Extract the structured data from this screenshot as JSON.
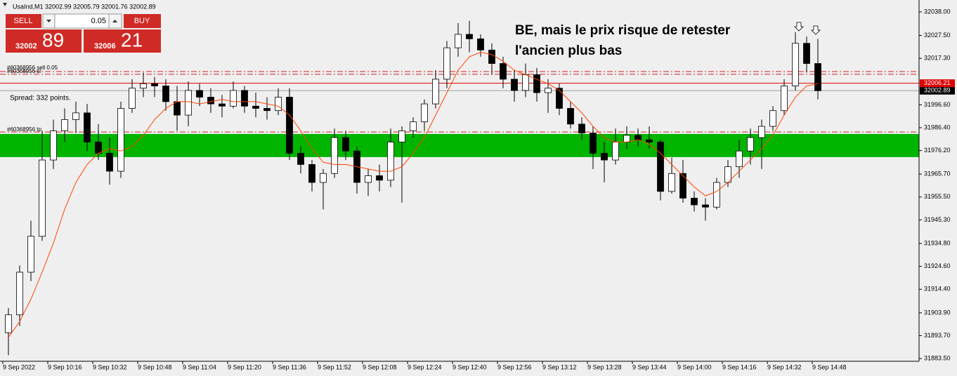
{
  "header": "UsaInd,M1 32002.99 32005.79 32001.76 32002.89",
  "trade_panel": {
    "sell": "SELL",
    "buy": "BUY",
    "volume": "0.05",
    "sell_price_main": "32002",
    "sell_price_big": "89",
    "buy_price_main": "32006",
    "buy_price_big": "21"
  },
  "spread": "Spread: 332 points.",
  "annotation": [
    "BE, mais le prix risque de retester",
    "l'ancien plus bas"
  ],
  "chart_data": {
    "type": "candlestick",
    "categories": [
      "9 Sep 2022",
      null,
      null,
      null,
      "9 Sep 10:16",
      null,
      null,
      null,
      "9 Sep 10:32",
      null,
      null,
      null,
      "9 Sep 10:48",
      null,
      null,
      null,
      "9 Sep 11:04",
      null,
      null,
      null,
      "9 Sep 11:20",
      null,
      null,
      null,
      "9 Sep 11:36",
      null,
      null,
      null,
      "9 Sep 11:52",
      null,
      null,
      null,
      "9 Sep 12:08",
      null,
      null,
      null,
      "9 Sep 12:24",
      null,
      null,
      null,
      "9 Sep 12:40",
      null,
      null,
      null,
      "9 Sep 12:56",
      null,
      null,
      null,
      "9 Sep 13:12",
      null,
      null,
      null,
      "9 Sep 13:28",
      null,
      null,
      null,
      "9 Sep 13:44",
      null,
      null,
      null,
      "9 Sep 14:00",
      null,
      null,
      null,
      "9 Sep 14:16",
      null,
      null,
      null,
      "9 Sep 14:32",
      null,
      null,
      null,
      "9 Sep 14:48"
    ],
    "open": [
      31895,
      31903,
      31922,
      31938,
      31972,
      31985,
      31990,
      31993,
      31980,
      31975,
      31967,
      31995,
      32004,
      32006,
      32005,
      31998,
      31992,
      32003,
      32000,
      31997,
      31996,
      32003,
      31996,
      31995,
      31994,
      32000,
      31975,
      31970,
      31962,
      31966,
      31982,
      31976,
      31962,
      31965,
      31963,
      31980,
      31985,
      31989,
      31997,
      32008,
      32022,
      32028,
      32026,
      32021,
      32015,
      32008,
      32003,
      32010,
      32002,
      32004,
      31995,
      31988,
      31984,
      31975,
      31972,
      31980,
      31983,
      31981,
      31980,
      31958,
      31966,
      31955,
      31952,
      31951,
      31962,
      31969,
      31976,
      31982,
      31987,
      31994,
      32005,
      32024,
      32015
    ],
    "high": [
      31906,
      31925,
      31945,
      31985,
      31990,
      31995,
      31998,
      31997,
      31988,
      31982,
      31998,
      32008,
      32011,
      32009,
      32008,
      32005,
      32007,
      32006,
      32004,
      32001,
      32007,
      32005,
      32002,
      32000,
      32004,
      32004,
      31978,
      31972,
      31968,
      31986,
      31985,
      31978,
      31968,
      31970,
      31986,
      31987,
      31991,
      31999,
      32012,
      32025,
      32033,
      32034,
      32028,
      32024,
      32018,
      32012,
      32015,
      32013,
      32008,
      32006,
      31998,
      31991,
      31987,
      31980,
      31986,
      31987,
      31986,
      31987,
      31981,
      31973,
      31972,
      31958,
      31955,
      31964,
      31972,
      31981,
      31986,
      31990,
      31996,
      32008,
      32029,
      32027,
      32026
    ],
    "low": [
      31885,
      31898,
      31918,
      31936,
      31968,
      31980,
      31984,
      31976,
      31972,
      31961,
      31964,
      31993,
      32000,
      32000,
      31994,
      31985,
      31987,
      31996,
      31993,
      31991,
      31995,
      31993,
      31991,
      31990,
      31992,
      31972,
      31966,
      31958,
      31950,
      31964,
      31972,
      31957,
      31956,
      31958,
      31960,
      31953,
      31982,
      31985,
      31995,
      32004,
      32018,
      32020,
      32018,
      32010,
      32004,
      31998,
      32000,
      31998,
      31993,
      31992,
      31986,
      31981,
      31968,
      31962,
      31970,
      31977,
      31978,
      31977,
      31954,
      31957,
      31953,
      31949,
      31945,
      31950,
      31960,
      31964,
      31970,
      31968,
      31985,
      31992,
      32003,
      32011,
      31999
    ],
    "close": [
      31903,
      31922,
      31938,
      31972,
      31985,
      31990,
      31993,
      31980,
      31975,
      31967,
      31995,
      32004,
      32006,
      32005,
      31998,
      31992,
      32003,
      32000,
      31997,
      31996,
      32003,
      31996,
      31995,
      31994,
      32000,
      31975,
      31970,
      31962,
      31966,
      31982,
      31976,
      31962,
      31965,
      31963,
      31980,
      31985,
      31989,
      31997,
      32008,
      32022,
      32028,
      32026,
      32021,
      32015,
      32008,
      32003,
      32010,
      32002,
      32004,
      31995,
      31988,
      31984,
      31975,
      31972,
      31980,
      31983,
      31981,
      31980,
      31958,
      31966,
      31955,
      31952,
      31951,
      31962,
      31969,
      31976,
      31982,
      31987,
      31994,
      32005,
      32024,
      32015,
      32002.89
    ],
    "up_color": "#ffffff",
    "down_color": "#000000",
    "ma": {
      "color": "#ff4500",
      "values": [
        31893,
        31900,
        31910,
        31922,
        31935,
        31950,
        31962,
        31970,
        31975,
        31977,
        31976,
        31978,
        31983,
        31990,
        31995,
        31998,
        31998,
        31997,
        31998,
        31999,
        31998,
        31998,
        31998,
        31997,
        31996,
        31992,
        31985,
        31977,
        31971,
        31970,
        31970,
        31969,
        31968,
        31967,
        31967,
        31969,
        31975,
        31982,
        31992,
        32002,
        32012,
        32018,
        32020,
        32019,
        32016,
        32012,
        32010,
        32008,
        32006,
        32003,
        31998,
        31993,
        31987,
        31982,
        31980,
        31980,
        31981,
        31979,
        31975,
        31970,
        31965,
        31960,
        31956,
        31958,
        31962,
        31967,
        31972,
        31977,
        31983,
        31992,
        32000,
        32005,
        32006
      ]
    },
    "ylim": [
      31882.3,
      32043.3
    ],
    "yticks": [
      {
        "value": 32038,
        "label": "32038.00"
      },
      {
        "value": 32027.5,
        "label": "32027.50"
      },
      {
        "value": 32017.3,
        "label": "32017.30"
      },
      {
        "value": 31996.6,
        "label": "31996.60"
      },
      {
        "value": 31986.4,
        "label": "31986.40"
      },
      {
        "value": 31976.2,
        "label": "31976.20"
      },
      {
        "value": 31965.7,
        "label": "31965.70"
      },
      {
        "value": 31955.5,
        "label": "31955.50"
      },
      {
        "value": 31945.3,
        "label": "31945.30"
      },
      {
        "value": 31934.8,
        "label": "31934.80"
      },
      {
        "value": 31924.6,
        "label": "31924.60"
      },
      {
        "value": 31914.4,
        "label": "31914.40"
      },
      {
        "value": 31903.9,
        "label": "31903.90"
      },
      {
        "value": 31893.7,
        "label": "31893.70"
      },
      {
        "value": 31883.5,
        "label": "31883.50"
      }
    ],
    "ask": {
      "value": 32006.21,
      "label": "32006.21",
      "color": "#e00000"
    },
    "bid": {
      "value": 32002.89,
      "label": "32002.89",
      "color": "#a0a0a0"
    },
    "orders": [
      {
        "label": "#60368956 sell 0.05",
        "value": 32011.4
      },
      {
        "label": "#60368956 sl",
        "value": 32010.2
      },
      {
        "label": "#60368956 tp",
        "value": 31984.5
      }
    ],
    "order_color": "#d02020",
    "zone": {
      "high": 31983.6,
      "low": 31973.3,
      "color": "#00b400"
    }
  }
}
